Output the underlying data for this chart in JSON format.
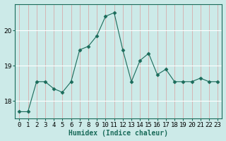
{
  "xlabel": "Humidex (Indice chaleur)",
  "x": [
    0,
    1,
    2,
    3,
    4,
    5,
    6,
    7,
    8,
    9,
    10,
    11,
    12,
    13,
    14,
    15,
    16,
    17,
    18,
    19,
    20,
    21,
    22,
    23
  ],
  "y": [
    17.7,
    17.7,
    18.55,
    18.55,
    18.35,
    18.25,
    18.55,
    19.45,
    19.55,
    19.85,
    20.4,
    20.5,
    19.45,
    18.55,
    19.15,
    19.35,
    18.75,
    18.9,
    18.55,
    18.55,
    18.55,
    18.65,
    18.55,
    18.55
  ],
  "line_color": "#1a6b5a",
  "marker": "D",
  "marker_size": 2.5,
  "bg_color": "#cceae8",
  "grid_color": "#ffffff",
  "ylim": [
    17.5,
    20.75
  ],
  "yticks": [
    18,
    19,
    20
  ],
  "xlim": [
    -0.5,
    23.5
  ],
  "label_fontsize": 7,
  "tick_fontsize": 6.5
}
